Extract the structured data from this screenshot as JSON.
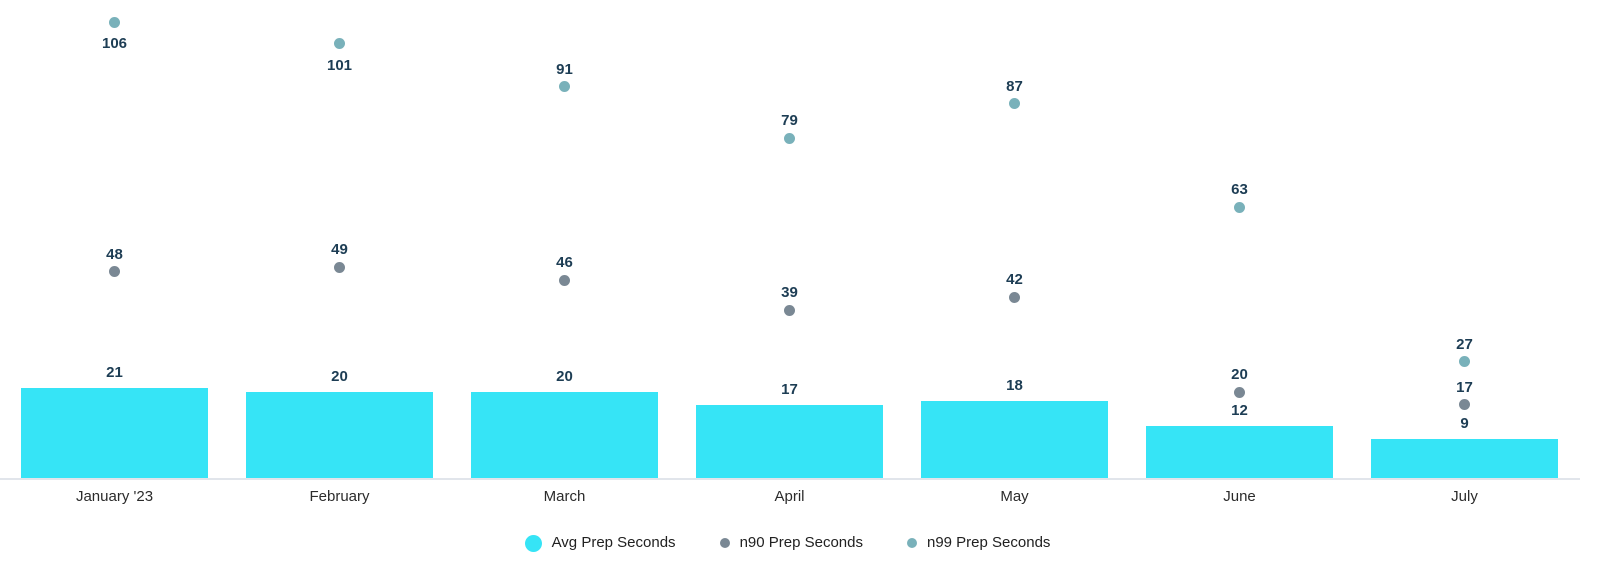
{
  "chart_data": {
    "type": "bar",
    "subtype": "bar-with-scatter-overlay",
    "categories": [
      "January '23",
      "February",
      "March",
      "April",
      "May",
      "June",
      "July"
    ],
    "series": [
      {
        "name": "Avg Prep Seconds",
        "render": "bar",
        "color": "#36e4f6",
        "values": [
          21,
          20,
          20,
          17,
          18,
          12,
          9
        ]
      },
      {
        "name": "n90 Prep Seconds",
        "render": "scatter",
        "color": "#7a8894",
        "values": [
          48,
          49,
          46,
          39,
          42,
          20,
          17
        ]
      },
      {
        "name": "n99 Prep Seconds",
        "render": "scatter",
        "color": "#79b1ba",
        "values": [
          106,
          101,
          91,
          79,
          87,
          63,
          27
        ]
      }
    ],
    "title": "",
    "xlabel": "",
    "ylabel": "",
    "ylim": [
      0,
      111
    ],
    "grid": false,
    "y_axis_visible": false,
    "value_labels": true,
    "legend_position": "bottom"
  },
  "legend": {
    "items": [
      {
        "label": "Avg Prep Seconds"
      },
      {
        "label": "n90 Prep Seconds"
      },
      {
        "label": "n99 Prep Seconds"
      }
    ]
  },
  "colors": {
    "bar": "#36e4f6",
    "n90_dot": "#7a8894",
    "n99_dot": "#79b1ba",
    "value_label_text": "#1d3d54",
    "axis_line": "#e1e5eb",
    "axis_label_text": "#2b2b2b",
    "legend_text": "#212121",
    "background": "#ffffff"
  }
}
